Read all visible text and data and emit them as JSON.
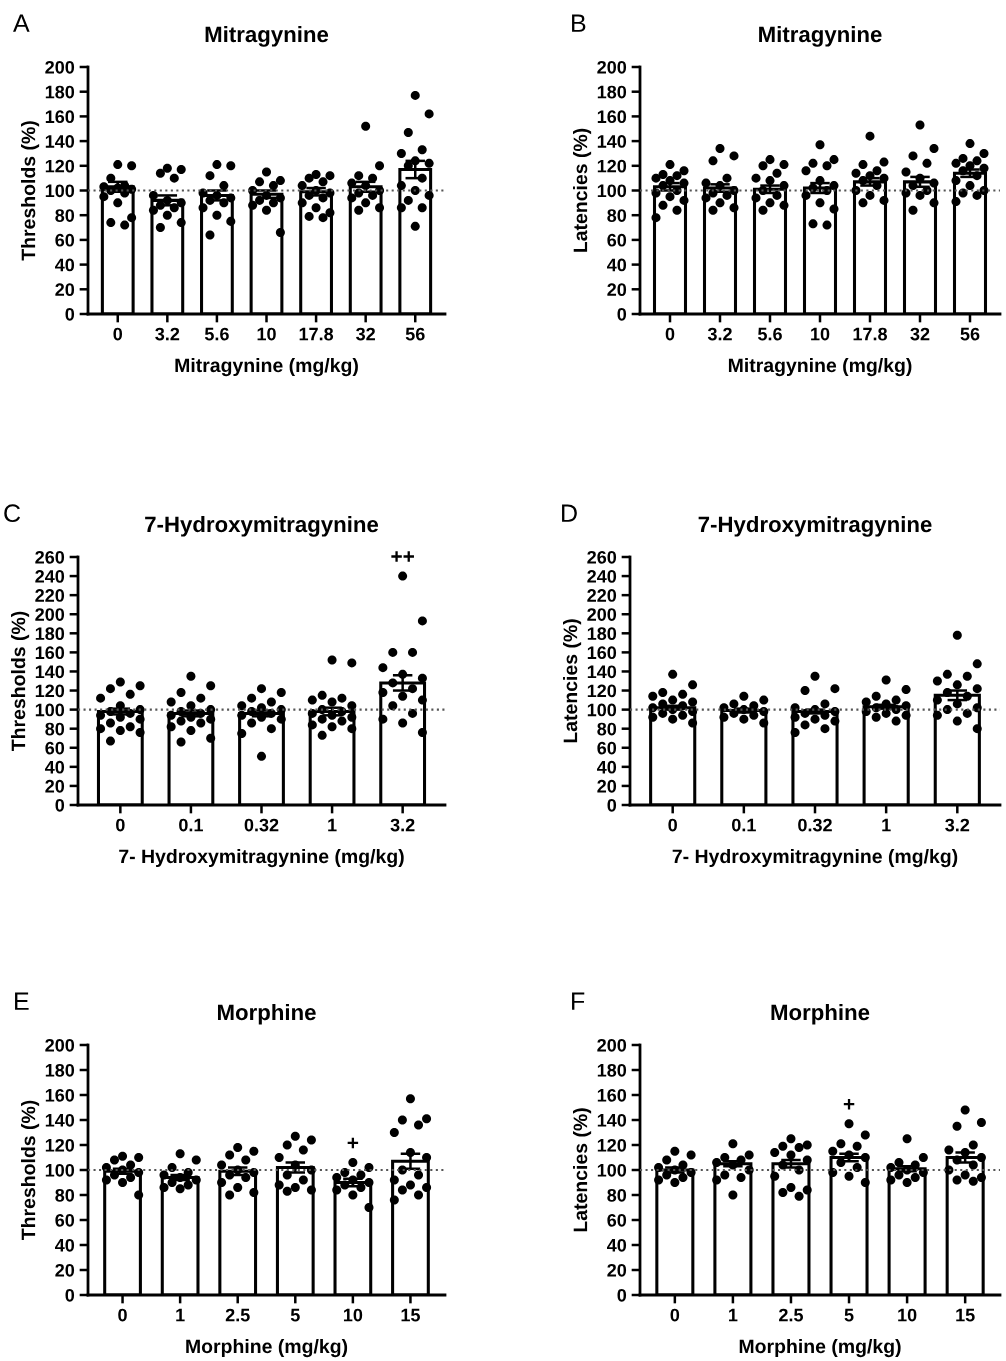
{
  "chart_data": [
    {
      "type": "bar",
      "title": "Mitragynine",
      "xlabel": "Mitragynine (mg/kg)",
      "ylabel": "Thresholds (%)",
      "categories": [
        "0",
        "3.2",
        "5.6",
        "10",
        "17.8",
        "32",
        "56"
      ],
      "ylim": [
        0,
        200
      ],
      "yticks": [
        0,
        20,
        40,
        60,
        80,
        100,
        120,
        140,
        160,
        180,
        200
      ],
      "grid": false,
      "legend": false,
      "ref_lines": [
        {
          "axis": "y",
          "value": 100,
          "color": "#555555",
          "line_style": "dotted"
        }
      ],
      "annotations": [
        "A"
      ],
      "series": [
        {
          "type": "bar",
          "color": "#ffffff",
          "values": [
            103,
            92,
            96,
            97,
            99,
            103,
            117
          ],
          "errors": [
            4,
            4,
            4,
            3,
            3,
            4,
            7
          ]
        },
        {
          "type": "scatter",
          "color": "#000000",
          "marker": "circle",
          "x": [
            "0",
            "0",
            "0",
            "0",
            "0",
            "0",
            "0",
            "0",
            "0",
            "0",
            "0",
            "0",
            "0",
            "0",
            "3.2",
            "3.2",
            "3.2",
            "3.2",
            "3.2",
            "3.2",
            "3.2",
            "3.2",
            "3.2",
            "3.2",
            "3.2",
            "3.2",
            "3.2",
            "5.6",
            "5.6",
            "5.6",
            "5.6",
            "5.6",
            "5.6",
            "5.6",
            "5.6",
            "5.6",
            "5.6",
            "5.6",
            "5.6",
            "5.6",
            "10",
            "10",
            "10",
            "10",
            "10",
            "10",
            "10",
            "10",
            "10",
            "10",
            "10",
            "10",
            "17.8",
            "17.8",
            "17.8",
            "17.8",
            "17.8",
            "17.8",
            "17.8",
            "17.8",
            "17.8",
            "17.8",
            "17.8",
            "17.8",
            "17.8",
            "17.8",
            "32",
            "32",
            "32",
            "32",
            "32",
            "32",
            "32",
            "32",
            "32",
            "32",
            "32",
            "32",
            "32",
            "56",
            "56",
            "56",
            "56",
            "56",
            "56",
            "56",
            "56",
            "56",
            "56",
            "56",
            "56",
            "56",
            "56",
            "56",
            "56"
          ],
          "values": [
            121,
            120,
            110,
            104,
            103,
            102,
            101,
            100,
            98,
            95,
            90,
            78,
            74,
            72,
            118,
            117,
            114,
            110,
            96,
            92,
            90,
            88,
            86,
            84,
            80,
            74,
            70,
            121,
            120,
            112,
            104,
            98,
            96,
            94,
            92,
            90,
            86,
            80,
            75,
            64,
            115,
            108,
            107,
            104,
            100,
            96,
            94,
            92,
            90,
            88,
            84,
            66,
            113,
            112,
            110,
            107,
            104,
            100,
            98,
            96,
            94,
            90,
            86,
            82,
            79,
            78,
            152,
            120,
            112,
            110,
            106,
            104,
            100,
            98,
            96,
            94,
            90,
            86,
            84,
            177,
            162,
            147,
            133,
            130,
            124,
            122,
            120,
            110,
            104,
            100,
            96,
            92,
            86,
            86,
            71
          ]
        }
      ]
    },
    {
      "type": "bar",
      "title": "Mitragynine",
      "xlabel": "Mitragynine (mg/kg)",
      "ylabel": "Latencies (%)",
      "categories": [
        "0",
        "3.2",
        "5.6",
        "10",
        "17.8",
        "32",
        "56"
      ],
      "ylim": [
        0,
        200
      ],
      "yticks": [
        0,
        20,
        40,
        60,
        80,
        100,
        120,
        140,
        160,
        180,
        200
      ],
      "grid": false,
      "legend": false,
      "ref_lines": [
        {
          "axis": "y",
          "value": 100,
          "color": "#555555",
          "line_style": "dotted"
        }
      ],
      "annotations": [
        "B"
      ],
      "series": [
        {
          "type": "bar",
          "color": "#ffffff",
          "values": [
            103,
            102,
            101,
            102,
            107,
            107,
            114
          ],
          "errors": [
            3,
            3,
            3,
            4,
            3,
            4,
            3
          ]
        },
        {
          "type": "scatter",
          "color": "#000000",
          "marker": "circle",
          "x": [
            "0",
            "0",
            "0",
            "0",
            "0",
            "0",
            "0",
            "0",
            "0",
            "0",
            "0",
            "0",
            "0",
            "0",
            "0",
            "3.2",
            "3.2",
            "3.2",
            "3.2",
            "3.2",
            "3.2",
            "3.2",
            "3.2",
            "3.2",
            "3.2",
            "3.2",
            "3.2",
            "3.2",
            "5.6",
            "5.6",
            "5.6",
            "5.6",
            "5.6",
            "5.6",
            "5.6",
            "5.6",
            "5.6",
            "5.6",
            "5.6",
            "5.6",
            "5.6",
            "10",
            "10",
            "10",
            "10",
            "10",
            "10",
            "10",
            "10",
            "10",
            "10",
            "10",
            "10",
            "10",
            "10",
            "17.8",
            "17.8",
            "17.8",
            "17.8",
            "17.8",
            "17.8",
            "17.8",
            "17.8",
            "17.8",
            "17.8",
            "17.8",
            "17.8",
            "17.8",
            "32",
            "32",
            "32",
            "32",
            "32",
            "32",
            "32",
            "32",
            "32",
            "32",
            "32",
            "32",
            "32",
            "56",
            "56",
            "56",
            "56",
            "56",
            "56",
            "56",
            "56",
            "56",
            "56",
            "56",
            "56",
            "56",
            "56",
            "56"
          ],
          "values": [
            121,
            116,
            113,
            112,
            110,
            108,
            106,
            104,
            100,
            98,
            95,
            92,
            88,
            84,
            78,
            134,
            128,
            124,
            110,
            106,
            104,
            100,
            98,
            96,
            94,
            90,
            86,
            84,
            125,
            121,
            120,
            114,
            110,
            108,
            104,
            100,
            96,
            94,
            90,
            88,
            84,
            137,
            125,
            122,
            120,
            116,
            108,
            104,
            102,
            100,
            96,
            90,
            85,
            73,
            72,
            144,
            123,
            121,
            116,
            114,
            112,
            110,
            108,
            104,
            100,
            96,
            92,
            90,
            153,
            134,
            128,
            122,
            115,
            110,
            106,
            104,
            100,
            98,
            96,
            90,
            84,
            138,
            130,
            126,
            124,
            122,
            120,
            118,
            116,
            112,
            108,
            104,
            100,
            98,
            96,
            91
          ]
        }
      ]
    },
    {
      "type": "bar",
      "title": "7-Hydroxymitragynine",
      "xlabel": "7- Hydroxymitragynine (mg/kg)",
      "ylabel": "Thresholds (%)",
      "categories": [
        "0",
        "0.1",
        "0.32",
        "1",
        "3.2"
      ],
      "ylim": [
        0,
        260
      ],
      "yticks": [
        0,
        20,
        40,
        60,
        80,
        100,
        120,
        140,
        160,
        180,
        200,
        220,
        240,
        260
      ],
      "grid": false,
      "legend": false,
      "ref_lines": [
        {
          "axis": "y",
          "value": 100,
          "color": "#555555",
          "line_style": "dotted"
        }
      ],
      "annotations": [
        "C",
        {
          "text": "++",
          "x": "3.2",
          "y": 240
        }
      ],
      "series": [
        {
          "type": "bar",
          "color": "#ffffff",
          "values": [
            98,
            96,
            96,
            98,
            128
          ],
          "errors": [
            3,
            3,
            3,
            4,
            8
          ]
        },
        {
          "type": "scatter",
          "color": "#000000",
          "marker": "circle",
          "x": [
            "0",
            "0",
            "0",
            "0",
            "0",
            "0",
            "0",
            "0",
            "0",
            "0",
            "0",
            "0",
            "0",
            "0",
            "0",
            "0",
            "0",
            "0",
            "0.1",
            "0.1",
            "0.1",
            "0.1",
            "0.1",
            "0.1",
            "0.1",
            "0.1",
            "0.1",
            "0.1",
            "0.1",
            "0.1",
            "0.1",
            "0.1",
            "0.1",
            "0.1",
            "0.1",
            "0.1",
            "0.32",
            "0.32",
            "0.32",
            "0.32",
            "0.32",
            "0.32",
            "0.32",
            "0.32",
            "0.32",
            "0.32",
            "0.32",
            "0.32",
            "0.32",
            "0.32",
            "0.32",
            "0.32",
            "1",
            "1",
            "1",
            "1",
            "1",
            "1",
            "1",
            "1",
            "1",
            "1",
            "1",
            "1",
            "1",
            "1",
            "1",
            "1",
            "1",
            "1",
            "3.2",
            "3.2",
            "3.2",
            "3.2",
            "3.2",
            "3.2",
            "3.2",
            "3.2",
            "3.2",
            "3.2",
            "3.2",
            "3.2",
            "3.2",
            "3.2",
            "3.2",
            "3.2",
            "3.2"
          ],
          "values": [
            129,
            125,
            122,
            116,
            112,
            104,
            100,
            98,
            96,
            94,
            92,
            90,
            86,
            82,
            80,
            78,
            76,
            67,
            135,
            125,
            118,
            112,
            108,
            104,
            100,
            98,
            96,
            94,
            92,
            90,
            88,
            86,
            82,
            78,
            70,
            66,
            122,
            118,
            112,
            108,
            104,
            102,
            100,
            98,
            96,
            94,
            92,
            90,
            86,
            80,
            75,
            51,
            152,
            149,
            115,
            112,
            110,
            108,
            104,
            100,
            98,
            96,
            94,
            92,
            90,
            88,
            84,
            82,
            80,
            73,
            240,
            193,
            160,
            160,
            144,
            137,
            133,
            128,
            122,
            118,
            114,
            110,
            104,
            96,
            90,
            86,
            76
          ]
        }
      ]
    },
    {
      "type": "bar",
      "title": "7-Hydroxymitragynine",
      "xlabel": "7- Hydroxymitragynine (mg/kg)",
      "ylabel": "Latencies (%)",
      "categories": [
        "0",
        "0.1",
        "0.32",
        "1",
        "3.2"
      ],
      "ylim": [
        0,
        260
      ],
      "yticks": [
        0,
        20,
        40,
        60,
        80,
        100,
        120,
        140,
        160,
        180,
        200,
        220,
        240,
        260
      ],
      "grid": false,
      "legend": false,
      "ref_lines": [
        {
          "axis": "y",
          "value": 100,
          "color": "#555555",
          "line_style": "dotted"
        }
      ],
      "annotations": [
        "D"
      ],
      "series": [
        {
          "type": "bar",
          "color": "#ffffff",
          "values": [
            102,
            99,
            98,
            103,
            115
          ],
          "errors": [
            2,
            2,
            2,
            2,
            5
          ]
        },
        {
          "type": "scatter",
          "color": "#000000",
          "marker": "circle",
          "x": [
            "0",
            "0",
            "0",
            "0",
            "0",
            "0",
            "0",
            "0",
            "0",
            "0",
            "0",
            "0",
            "0",
            "0",
            "0",
            "0",
            "0",
            "0.1",
            "0.1",
            "0.1",
            "0.1",
            "0.1",
            "0.1",
            "0.1",
            "0.1",
            "0.1",
            "0.1",
            "0.1",
            "0.1",
            "0.32",
            "0.32",
            "0.32",
            "0.32",
            "0.32",
            "0.32",
            "0.32",
            "0.32",
            "0.32",
            "0.32",
            "0.32",
            "0.32",
            "0.32",
            "0.32",
            "0.32",
            "1",
            "1",
            "1",
            "1",
            "1",
            "1",
            "1",
            "1",
            "1",
            "1",
            "1",
            "1",
            "1",
            "1",
            "3.2",
            "3.2",
            "3.2",
            "3.2",
            "3.2",
            "3.2",
            "3.2",
            "3.2",
            "3.2",
            "3.2",
            "3.2",
            "3.2",
            "3.2",
            "3.2",
            "3.2",
            "3.2",
            "3.2"
          ],
          "values": [
            137,
            126,
            118,
            116,
            114,
            110,
            108,
            106,
            104,
            102,
            100,
            98,
            96,
            94,
            92,
            90,
            86,
            114,
            110,
            106,
            104,
            102,
            100,
            98,
            96,
            94,
            92,
            90,
            86,
            135,
            122,
            120,
            106,
            102,
            100,
            98,
            96,
            94,
            92,
            90,
            88,
            84,
            80,
            76,
            131,
            121,
            114,
            110,
            108,
            106,
            104,
            102,
            100,
            98,
            96,
            94,
            92,
            88,
            178,
            148,
            137,
            135,
            130,
            126,
            122,
            118,
            114,
            110,
            106,
            102,
            100,
            96,
            94,
            88,
            80
          ]
        }
      ]
    },
    {
      "type": "bar",
      "title": "Morphine",
      "xlabel": "Morphine (mg/kg)",
      "ylabel": "Thresholds (%)",
      "categories": [
        "0",
        "1",
        "2.5",
        "5",
        "10",
        "15"
      ],
      "ylim": [
        0,
        200
      ],
      "yticks": [
        0,
        20,
        40,
        60,
        80,
        100,
        120,
        140,
        160,
        180,
        200
      ],
      "grid": false,
      "legend": false,
      "ref_lines": [
        {
          "axis": "y",
          "value": 100,
          "color": "#555555",
          "line_style": "dotted"
        }
      ],
      "annotations": [
        "E",
        {
          "text": "+",
          "x": "10",
          "y": 106
        }
      ],
      "series": [
        {
          "type": "bar",
          "color": "#ffffff",
          "values": [
            99,
            94,
            99,
            102,
            90,
            107
          ],
          "errors": [
            2,
            2,
            3,
            4,
            3,
            6
          ]
        },
        {
          "type": "scatter",
          "color": "#000000",
          "marker": "circle",
          "x": [
            "0",
            "0",
            "0",
            "0",
            "0",
            "0",
            "0",
            "0",
            "0",
            "0",
            "0",
            "0",
            "1",
            "1",
            "1",
            "1",
            "1",
            "1",
            "1",
            "1",
            "1",
            "1",
            "1",
            "2.5",
            "2.5",
            "2.5",
            "2.5",
            "2.5",
            "2.5",
            "2.5",
            "2.5",
            "2.5",
            "2.5",
            "2.5",
            "2.5",
            "2.5",
            "5",
            "5",
            "5",
            "5",
            "5",
            "5",
            "5",
            "5",
            "5",
            "5",
            "5",
            "5",
            "5",
            "10",
            "10",
            "10",
            "10",
            "10",
            "10",
            "10",
            "10",
            "10",
            "10",
            "10",
            "10",
            "15",
            "15",
            "15",
            "15",
            "15",
            "15",
            "15",
            "15",
            "15",
            "15",
            "15",
            "15",
            "15",
            "15",
            "15"
          ],
          "values": [
            111,
            110,
            108,
            104,
            102,
            100,
            98,
            96,
            94,
            92,
            90,
            80,
            113,
            108,
            102,
            98,
            96,
            94,
            92,
            90,
            88,
            86,
            85,
            118,
            115,
            112,
            108,
            104,
            100,
            98,
            96,
            94,
            90,
            86,
            82,
            80,
            127,
            124,
            120,
            116,
            110,
            104,
            100,
            96,
            92,
            88,
            86,
            84,
            83,
            106,
            102,
            98,
            96,
            94,
            92,
            90,
            88,
            86,
            84,
            80,
            70,
            157,
            141,
            140,
            136,
            130,
            114,
            110,
            100,
            96,
            92,
            88,
            86,
            84,
            80,
            76
          ]
        }
      ]
    },
    {
      "type": "bar",
      "title": "Morphine",
      "xlabel": "Morphine (mg/kg)",
      "ylabel": "Latencies (%)",
      "categories": [
        "0",
        "1",
        "2.5",
        "5",
        "10",
        "15"
      ],
      "ylim": [
        0,
        200
      ],
      "yticks": [
        0,
        20,
        40,
        60,
        80,
        100,
        120,
        140,
        160,
        180,
        200
      ],
      "grid": false,
      "legend": false,
      "ref_lines": [
        {
          "axis": "y",
          "value": 100,
          "color": "#555555",
          "line_style": "dotted"
        }
      ],
      "annotations": [
        "F",
        {
          "text": "+",
          "x": "5",
          "y": 137
        }
      ],
      "series": [
        {
          "type": "bar",
          "color": "#ffffff",
          "values": [
            100,
            105,
            105,
            110,
            101,
            110
          ],
          "errors": [
            2,
            2,
            3,
            3,
            2,
            4
          ]
        },
        {
          "type": "scatter",
          "color": "#000000",
          "marker": "circle",
          "x": [
            "0",
            "0",
            "0",
            "0",
            "0",
            "0",
            "0",
            "0",
            "0",
            "0",
            "0",
            "1",
            "1",
            "1",
            "1",
            "1",
            "1",
            "1",
            "1",
            "1",
            "1",
            "1",
            "2.5",
            "2.5",
            "2.5",
            "2.5",
            "2.5",
            "2.5",
            "2.5",
            "2.5",
            "2.5",
            "2.5",
            "2.5",
            "2.5",
            "2.5",
            "2.5",
            "5",
            "5",
            "5",
            "5",
            "5",
            "5",
            "5",
            "5",
            "5",
            "5",
            "5",
            "5",
            "10",
            "10",
            "10",
            "10",
            "10",
            "10",
            "10",
            "10",
            "10",
            "10",
            "10",
            "15",
            "15",
            "15",
            "15",
            "15",
            "15",
            "15",
            "15",
            "15",
            "15",
            "15",
            "15",
            "15",
            "15"
          ],
          "values": [
            115,
            112,
            108,
            104,
            102,
            100,
            98,
            96,
            94,
            92,
            90,
            121,
            112,
            110,
            108,
            106,
            104,
            100,
            96,
            94,
            92,
            80,
            125,
            120,
            119,
            118,
            114,
            112,
            108,
            104,
            100,
            95,
            86,
            84,
            82,
            79,
            137,
            128,
            121,
            119,
            115,
            112,
            110,
            106,
            102,
            98,
            95,
            90,
            125,
            110,
            106,
            104,
            102,
            100,
            98,
            96,
            94,
            92,
            90,
            148,
            138,
            135,
            120,
            116,
            114,
            110,
            108,
            104,
            100,
            96,
            94,
            92,
            91
          ]
        }
      ]
    }
  ]
}
